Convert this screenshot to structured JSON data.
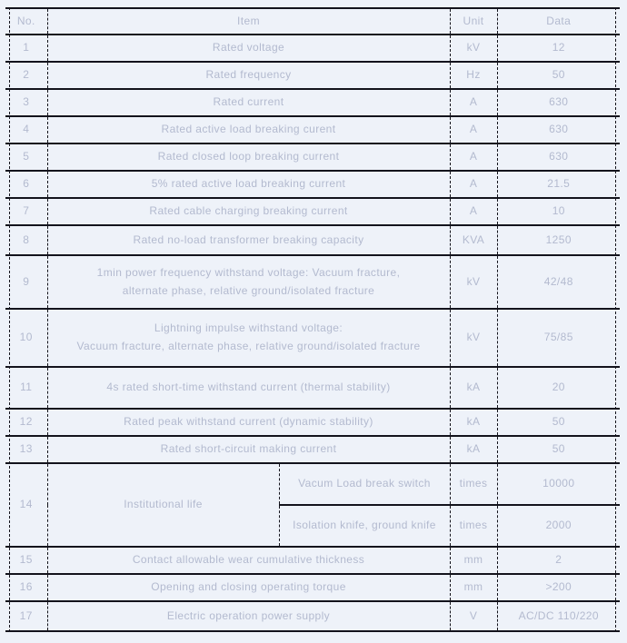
{
  "page": {
    "background_color": "#eef2f9",
    "text_color": "#b3bacf",
    "border_color": "#13131c"
  },
  "table": {
    "columns": [
      "No.",
      "Item",
      "Unit",
      "Data"
    ],
    "rows": [
      {
        "no": "1",
        "item": "Rated voltage",
        "unit": "kV",
        "data": "12"
      },
      {
        "no": "2",
        "item": "Rated frequency",
        "unit": "Hz",
        "data": "50"
      },
      {
        "no": "3",
        "item": "Rated current",
        "unit": "A",
        "data": "630"
      },
      {
        "no": "4",
        "item": "Rated active load breaking curent",
        "unit": "A",
        "data": "630"
      },
      {
        "no": "5",
        "item": "Rated closed loop breaking current",
        "unit": "A",
        "data": "630"
      },
      {
        "no": "6",
        "item": "5% rated active load breaking current",
        "unit": "A",
        "data": "21.5"
      },
      {
        "no": "7",
        "item": "Rated cable charging breaking current",
        "unit": "A",
        "data": "10"
      },
      {
        "no": "8",
        "item": "Rated no-load transformer breaking capacity",
        "unit": "KVA",
        "data": "1250"
      },
      {
        "no": "9",
        "item": "1min power frequency withstand voltage: Vacuum fracture,\nalternate phase, relative ground/isolated fracture",
        "unit": "kV",
        "data": "42/48"
      },
      {
        "no": "10",
        "item": "Lightning impulse withstand voltage:\nVacuum fracture, alternate phase, relative ground/isolated fracture",
        "unit": "kV",
        "data": "75/85"
      },
      {
        "no": "11",
        "item": "4s rated short-time withstand current (thermal stability)",
        "unit": "kA",
        "data": "20"
      },
      {
        "no": "12",
        "item": "Rated peak withstand current (dynamic stability)",
        "unit": "kA",
        "data": "50"
      },
      {
        "no": "13",
        "item": "Rated short-circuit making current",
        "unit": "kA",
        "data": "50"
      },
      {
        "no": "14",
        "item": "Institutional life",
        "subrows": [
          {
            "item": "Vacum Load break switch",
            "unit": "times",
            "data": "10000"
          },
          {
            "item": "Isolation knife, ground knife",
            "unit": "times",
            "data": "2000"
          }
        ]
      },
      {
        "no": "15",
        "item": "Contact allowable wear cumulative thickness",
        "unit": "mm",
        "data": "2"
      },
      {
        "no": "16",
        "item": "Opening and closing operating torque",
        "unit": "mm",
        "data": ">200"
      },
      {
        "no": "17",
        "item": "Electric operation power supply",
        "unit": "V",
        "data": "AC/DC 110/220"
      }
    ]
  }
}
